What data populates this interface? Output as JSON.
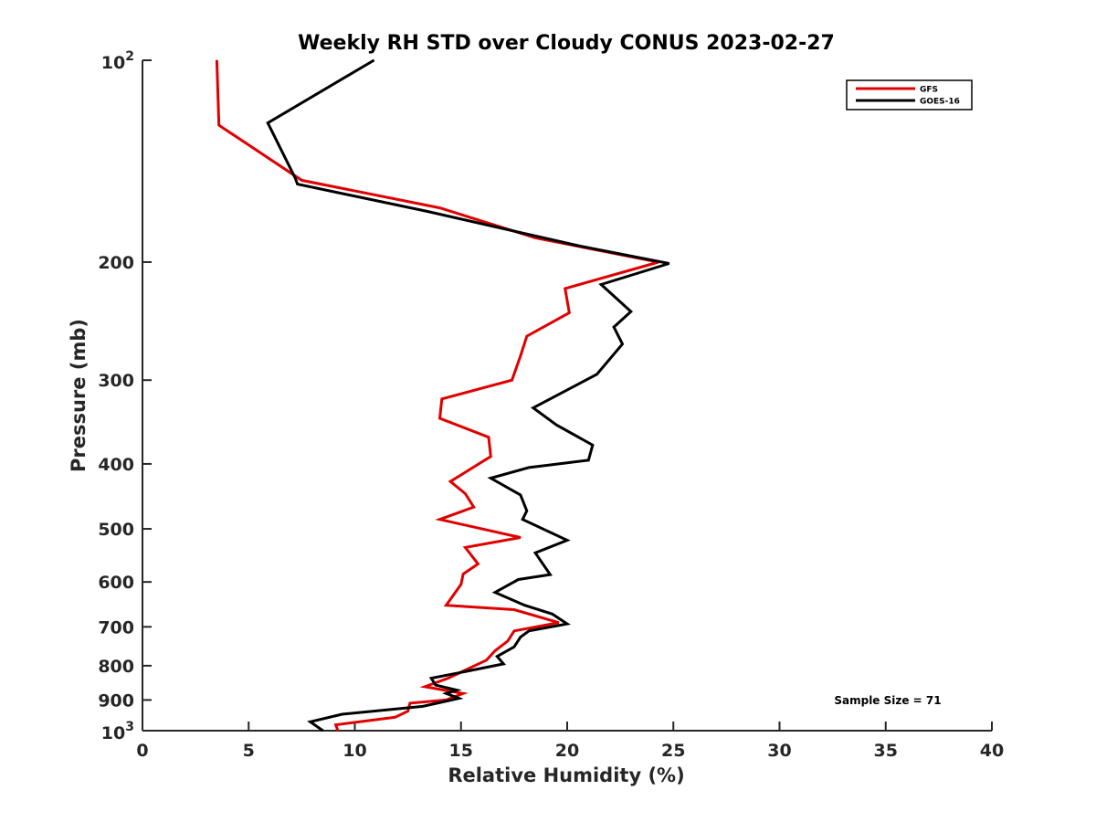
{
  "chart_data": {
    "type": "line",
    "title": "Weekly RH STD over Cloudy CONUS 2023-02-27",
    "xlabel": "Relative Humidity (%)",
    "ylabel": "Pressure (mb)",
    "xlim": [
      0,
      40
    ],
    "ylim": [
      100,
      1000
    ],
    "yscale": "log",
    "y_reversed": true,
    "grid": false,
    "legend_position": "top-right",
    "x_ticks": [
      0,
      5,
      10,
      15,
      20,
      25,
      30,
      35,
      40
    ],
    "x_tick_labels": [
      "0",
      "5",
      "10",
      "15",
      "20",
      "25",
      "30",
      "35",
      "40"
    ],
    "y_ticks": [
      {
        "value": 100,
        "base": "10",
        "exp": "2"
      },
      {
        "value": 200,
        "label": "200"
      },
      {
        "value": 300,
        "label": "300"
      },
      {
        "value": 400,
        "label": "400"
      },
      {
        "value": 500,
        "label": "500"
      },
      {
        "value": 600,
        "label": "600"
      },
      {
        "value": 700,
        "label": "700"
      },
      {
        "value": 800,
        "label": "800"
      },
      {
        "value": 900,
        "label": "900"
      },
      {
        "value": 1000,
        "base": "10",
        "exp": "3"
      }
    ],
    "series": [
      {
        "name": "GFS",
        "color": "#e00000",
        "points": [
          [
            3.5,
            100
          ],
          [
            3.6,
            125
          ],
          [
            7.5,
            151
          ],
          [
            14,
            166
          ],
          [
            18.5,
            184
          ],
          [
            24.3,
            200
          ],
          [
            19.9,
            219
          ],
          [
            20.1,
            238
          ],
          [
            18.1,
            258
          ],
          [
            17.8,
            276
          ],
          [
            17.4,
            300
          ],
          [
            14.1,
            320
          ],
          [
            14,
            342
          ],
          [
            16.3,
            365
          ],
          [
            16.4,
            390
          ],
          [
            14.5,
            425
          ],
          [
            15.2,
            443
          ],
          [
            15.6,
            464
          ],
          [
            14,
            484
          ],
          [
            17.8,
            515
          ],
          [
            15.2,
            533
          ],
          [
            15.8,
            564
          ],
          [
            15.1,
            584
          ],
          [
            15,
            605
          ],
          [
            14.3,
            650
          ],
          [
            17.5,
            660
          ],
          [
            19.6,
            690
          ],
          [
            17.5,
            710
          ],
          [
            17.2,
            735
          ],
          [
            16.6,
            760
          ],
          [
            16.2,
            785
          ],
          [
            14.4,
            835
          ],
          [
            13.3,
            860
          ],
          [
            15.1,
            880
          ],
          [
            14.3,
            900
          ],
          [
            12.6,
            910
          ],
          [
            12.5,
            935
          ],
          [
            11.9,
            955
          ],
          [
            9.1,
            980
          ],
          [
            9.2,
            1000
          ]
        ]
      },
      {
        "name": "GOES-16",
        "color": "#000000",
        "points": [
          [
            10.9,
            100
          ],
          [
            5.9,
            124
          ],
          [
            7.2,
            150
          ],
          [
            7.3,
            153
          ],
          [
            13.4,
            168
          ],
          [
            20.5,
            189
          ],
          [
            24.8,
            201
          ],
          [
            21.6,
            216
          ],
          [
            23,
            237
          ],
          [
            22.2,
            250
          ],
          [
            22.6,
            265
          ],
          [
            21.4,
            294
          ],
          [
            18.4,
            330
          ],
          [
            19.5,
            350
          ],
          [
            21.2,
            375
          ],
          [
            21,
            395
          ],
          [
            18.2,
            405
          ],
          [
            16.4,
            420
          ],
          [
            17.8,
            445
          ],
          [
            18.1,
            470
          ],
          [
            17.9,
            484
          ],
          [
            20,
            520
          ],
          [
            18.5,
            543
          ],
          [
            19.2,
            585
          ],
          [
            17.7,
            595
          ],
          [
            16.6,
            622
          ],
          [
            18,
            650
          ],
          [
            19.3,
            670
          ],
          [
            20,
            693
          ],
          [
            18.2,
            710
          ],
          [
            17.8,
            725
          ],
          [
            17.5,
            750
          ],
          [
            16.7,
            775
          ],
          [
            17,
            795
          ],
          [
            14.9,
            820
          ],
          [
            13.6,
            835
          ],
          [
            13.8,
            855
          ],
          [
            14.8,
            870
          ],
          [
            14.3,
            880
          ],
          [
            14.9,
            895
          ],
          [
            13.2,
            920
          ],
          [
            9.4,
            945
          ],
          [
            7.9,
            970
          ],
          [
            8.5,
            1000
          ]
        ]
      }
    ],
    "annotation": "Sample Size = 71"
  }
}
